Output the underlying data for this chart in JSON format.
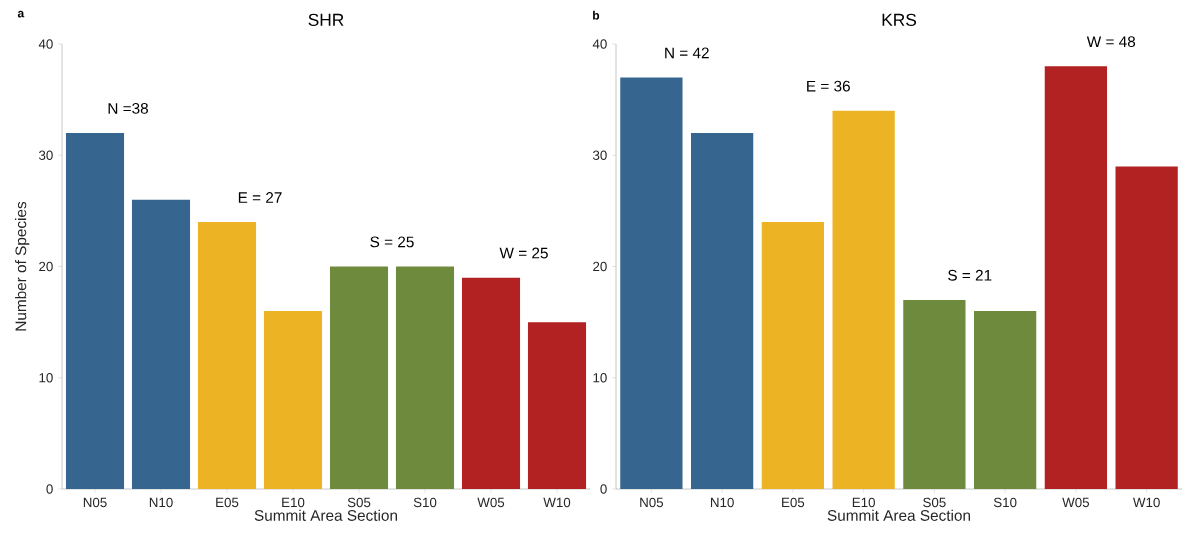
{
  "chart_data": [
    {
      "type": "bar",
      "title": "SHR",
      "xlabel": "Summit Area Section",
      "ylabel": "Number of Species",
      "categories": [
        "N05",
        "N10",
        "E05",
        "E10",
        "S05",
        "S10",
        "W05",
        "W10"
      ],
      "values": [
        32,
        26,
        24,
        16,
        20,
        20,
        19,
        15
      ],
      "colors": [
        "#366590",
        "#366590",
        "#ecb424",
        "#ecb424",
        "#6e8b3d",
        "#6e8b3d",
        "#b22222",
        "#b22222"
      ],
      "ylim": [
        0,
        40
      ],
      "yticks": [
        0,
        10,
        20,
        30,
        40
      ],
      "annotations": [
        "a",
        "N =38",
        "E = 27",
        "S = 25",
        "W = 25"
      ]
    },
    {
      "type": "bar",
      "title": "KRS",
      "xlabel": "Summit Area Section",
      "categories": [
        "N05",
        "N10",
        "E05",
        "E10",
        "S05",
        "S10",
        "W05",
        "W10"
      ],
      "values": [
        37,
        32,
        24,
        34,
        17,
        16,
        38,
        29
      ],
      "colors": [
        "#366590",
        "#366590",
        "#ecb424",
        "#ecb424",
        "#6e8b3d",
        "#6e8b3d",
        "#b22222",
        "#b22222"
      ],
      "ylim": [
        0,
        40
      ],
      "yticks": [
        0,
        10,
        20,
        30,
        40
      ],
      "annotations": [
        "b",
        "N = 42",
        "E = 36",
        "S = 21",
        "W = 48"
      ]
    }
  ]
}
